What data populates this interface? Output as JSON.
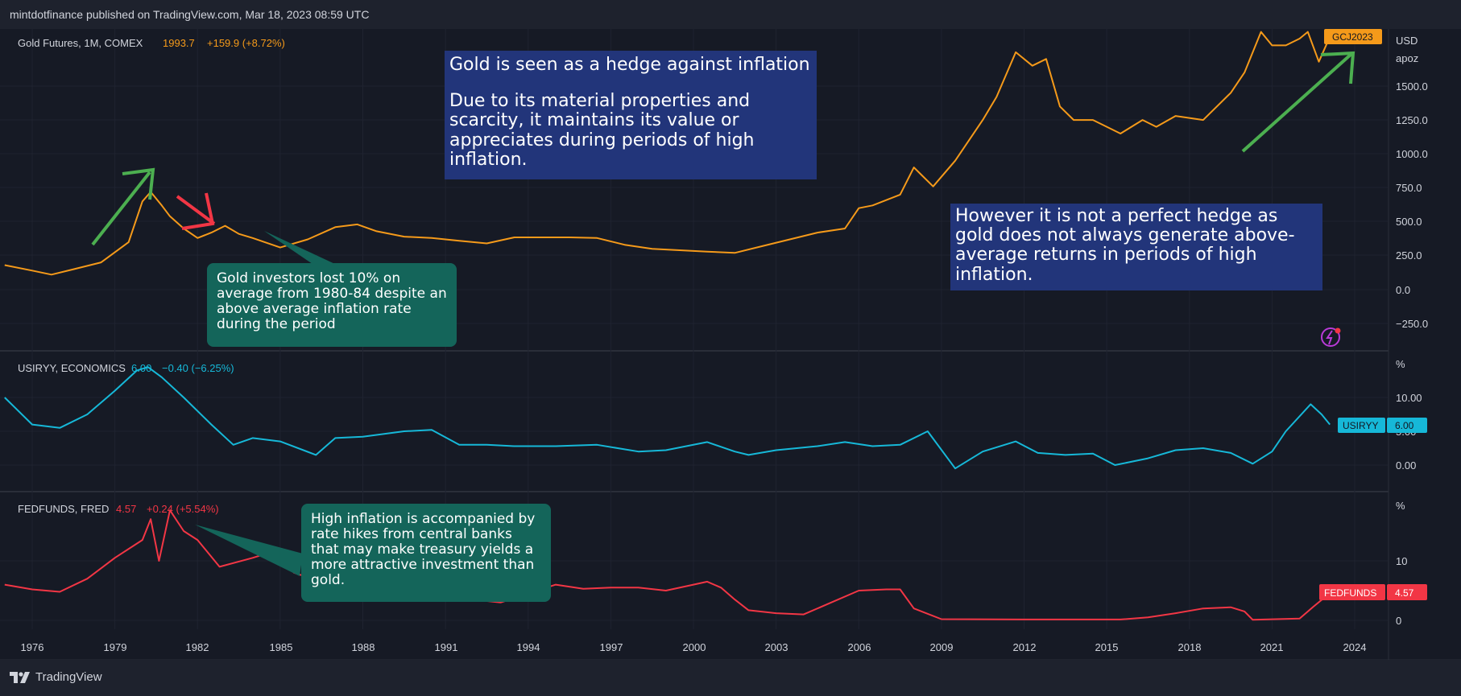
{
  "header": {
    "published_by": "mintdotfinance published on TradingView.com, Mar 18, 2023 08:59 UTC"
  },
  "footer": {
    "brand": "TradingView"
  },
  "colors": {
    "gold": "#f59a1a",
    "cpi": "#16b8d8",
    "fed": "#f23645",
    "arrow_green": "#4caf50",
    "arrow_red": "#f23645"
  },
  "panes": {
    "gold": {
      "symbol": "Gold Futures, 1M, COMEX",
      "value": "1993.7",
      "change": "+159.9 (+8.72%)",
      "currency": "USD",
      "unit": "apoz",
      "tag": "GCJ2023",
      "ticks": [
        "1500.0",
        "1250.0",
        "1000.0",
        "750.0",
        "500.0",
        "250.0",
        "0.0",
        "−250.0"
      ]
    },
    "cpi": {
      "symbol": "USIRYY, ECONOMICS",
      "value": "6.00",
      "change": "−0.40 (−6.25%)",
      "unit": "%",
      "tag": "USIRYY",
      "tag_value": "6.00",
      "ticks": [
        "10.00",
        "5.00",
        "0.00"
      ]
    },
    "fed": {
      "symbol": "FEDFUNDS, FRED",
      "value": "4.57",
      "change": "+0.24 (+5.54%)",
      "unit": "%",
      "tag": "FEDFUNDS",
      "tag_value": "4.57",
      "ticks": [
        "10",
        "0"
      ]
    }
  },
  "x_axis": {
    "labels": [
      "1976",
      "1979",
      "1982",
      "1985",
      "1988",
      "1991",
      "1994",
      "1997",
      "2000",
      "2003",
      "2006",
      "2009",
      "2012",
      "2015",
      "2018",
      "2021",
      "2024"
    ]
  },
  "annotations": {
    "hedge_title": "Gold is seen as a hedge against inflation",
    "hedge_body": "Due to its material properties and scarcity, it maintains its value or appreciates during periods of high inflation.",
    "not_perfect": "However it is not a perfect hedge as gold does not always generate above-average returns in periods of high inflation.",
    "investors_lost": "Gold investors lost 10% on average from 1980-84 despite an above average inflation rate during the period",
    "rate_hikes": "High inflation is accompanied by rate hikes from central banks that may make treasury yields a more attractive investment than gold."
  },
  "chart_data": [
    {
      "type": "line",
      "series": [
        {
          "name": "Gold Futures, 1M, COMEX",
          "color": "#f59a1a",
          "x": [
            1975.0,
            1976.0,
            1976.7,
            1977.5,
            1978.5,
            1979.5,
            1980.0,
            1980.3,
            1980.7,
            1981.0,
            1981.5,
            1982.0,
            1982.5,
            1983.0,
            1983.5,
            1984.0,
            1985.0,
            1986.0,
            1987.0,
            1987.8,
            1988.5,
            1989.5,
            1990.5,
            1991.5,
            1992.5,
            1993.5,
            1994.5,
            1995.5,
            1996.5,
            1997.5,
            1998.5,
            1999.5,
            2000.5,
            2001.5,
            2002.5,
            2003.5,
            2004.5,
            2005.5,
            2006.0,
            2006.5,
            2007.5,
            2008.0,
            2008.7,
            2009.5,
            2010.5,
            2011.0,
            2011.7,
            2012.3,
            2012.8,
            2013.3,
            2013.8,
            2014.5,
            2015.5,
            2016.3,
            2016.8,
            2017.5,
            2018.5,
            2019.5,
            2020.0,
            2020.6,
            2021.0,
            2021.5,
            2022.0,
            2022.3,
            2022.7,
            2023.2
          ],
          "values": [
            180,
            140,
            110,
            150,
            200,
            350,
            650,
            720,
            620,
            540,
            450,
            380,
            420,
            470,
            410,
            380,
            310,
            370,
            460,
            480,
            430,
            390,
            380,
            360,
            340,
            385,
            385,
            385,
            380,
            330,
            300,
            290,
            280,
            270,
            320,
            370,
            420,
            450,
            600,
            620,
            700,
            900,
            760,
            950,
            1250,
            1420,
            1750,
            1650,
            1700,
            1350,
            1250,
            1250,
            1150,
            1250,
            1200,
            1280,
            1250,
            1450,
            1600,
            1900,
            1800,
            1800,
            1850,
            1900,
            1680,
            1990
          ]
        }
      ],
      "ylim": [
        -250,
        1900
      ]
    },
    {
      "type": "line",
      "series": [
        {
          "name": "USIRYY, ECONOMICS",
          "color": "#16b8d8",
          "x": [
            1975.0,
            1976.0,
            1977.0,
            1978.0,
            1979.0,
            1979.8,
            1980.2,
            1980.7,
            1981.5,
            1982.5,
            1983.3,
            1984.0,
            1985.0,
            1986.3,
            1987.0,
            1988.0,
            1989.5,
            1990.5,
            1991.5,
            1992.5,
            1993.5,
            1995.0,
            1996.5,
            1998.0,
            1999.0,
            2000.5,
            2001.5,
            2002.0,
            2003.0,
            2004.5,
            2005.5,
            2006.5,
            2007.5,
            2008.5,
            2009.5,
            2010.5,
            2011.7,
            2012.5,
            2013.5,
            2014.5,
            2015.3,
            2016.5,
            2017.5,
            2018.5,
            2019.5,
            2020.3,
            2021.0,
            2021.5,
            2022.4,
            2022.8,
            2023.1
          ],
          "values": [
            10.0,
            6.0,
            5.5,
            7.5,
            11.0,
            14.0,
            14.5,
            13.0,
            10.0,
            6.0,
            3.0,
            4.0,
            3.5,
            1.5,
            4.0,
            4.2,
            5.0,
            5.2,
            3.0,
            3.0,
            2.8,
            2.8,
            3.0,
            2.0,
            2.2,
            3.4,
            2.0,
            1.5,
            2.2,
            2.8,
            3.4,
            2.8,
            3.0,
            5.0,
            -0.5,
            2.0,
            3.5,
            1.8,
            1.5,
            1.7,
            0.0,
            1.0,
            2.2,
            2.5,
            1.8,
            0.2,
            2.0,
            5.0,
            9.0,
            7.5,
            6.0
          ]
        }
      ],
      "ylim": [
        -2,
        15
      ]
    },
    {
      "type": "line",
      "series": [
        {
          "name": "FEDFUNDS, FRED",
          "color": "#f23645",
          "x": [
            1975.0,
            1976.0,
            1977.0,
            1978.0,
            1979.0,
            1980.0,
            1980.3,
            1980.6,
            1981.0,
            1981.5,
            1982.0,
            1982.8,
            1984.0,
            1984.7,
            1985.5,
            1986.5,
            1987.5,
            1989.0,
            1990.0,
            1991.0,
            1992.0,
            1993.0,
            1994.0,
            1995.0,
            1996.0,
            1997.0,
            1998.0,
            1999.0,
            2000.0,
            2000.5,
            2001.0,
            2001.5,
            2002.0,
            2003.0,
            2004.0,
            2005.0,
            2006.0,
            2007.0,
            2007.5,
            2008.0,
            2009.0,
            2012.0,
            2015.5,
            2016.5,
            2017.5,
            2018.5,
            2019.5,
            2020.0,
            2020.3,
            2022.0,
            2022.5,
            2023.1
          ],
          "values": [
            6.0,
            5.2,
            4.8,
            7.0,
            10.5,
            13.5,
            17.0,
            10.0,
            18.5,
            15.0,
            13.5,
            9.0,
            10.5,
            11.5,
            8.0,
            6.5,
            6.8,
            9.5,
            8.0,
            5.5,
            3.5,
            3.0,
            4.5,
            6.0,
            5.3,
            5.5,
            5.5,
            5.0,
            6.0,
            6.5,
            5.5,
            3.5,
            1.7,
            1.2,
            1.0,
            3.0,
            5.0,
            5.2,
            5.2,
            2.0,
            0.2,
            0.15,
            0.15,
            0.5,
            1.2,
            2.0,
            2.2,
            1.5,
            0.1,
            0.3,
            2.3,
            4.57
          ]
        }
      ],
      "ylim": [
        -2,
        20
      ]
    }
  ]
}
